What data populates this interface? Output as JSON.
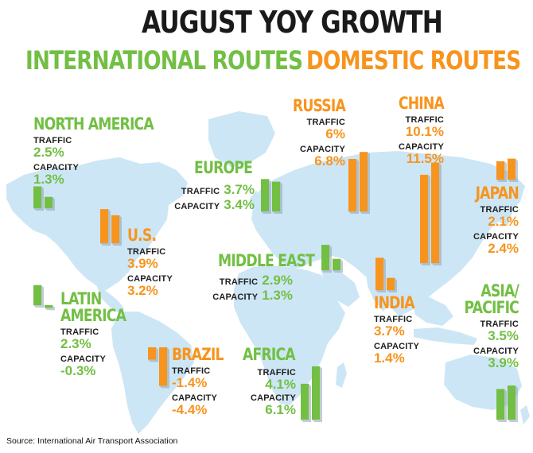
{
  "title": "AUGUST YOY GROWTH",
  "legend": {
    "international": "INTERNATIONAL ROUTES",
    "domestic": "DOMESTIC ROUTES"
  },
  "colors": {
    "international": "#72bf44",
    "domestic": "#f7941d",
    "map": "#cde6f5"
  },
  "source": "Source: International Air Transport Association",
  "chart_data": {
    "type": "bar",
    "title": "AUGUST YOY GROWTH",
    "metrics": [
      "TRAFFIC",
      "CAPACITY"
    ],
    "series": [
      {
        "name": "INTERNATIONAL ROUTES",
        "regions": [
          "NORTH AMERICA",
          "EUROPE",
          "MIDDLE EAST",
          "LATIN AMERICA",
          "AFRICA",
          "ASIA/ PACIFIC"
        ]
      },
      {
        "name": "DOMESTIC ROUTES",
        "regions": [
          "RUSSIA",
          "CHINA",
          "JAPAN",
          "U.S.",
          "INDIA",
          "BRAZIL"
        ]
      }
    ],
    "regions": [
      {
        "id": "north-america",
        "name": "NORTH AMERICA",
        "type": "international",
        "traffic": 2.5,
        "capacity": 1.3,
        "traffic_label": "2.5%",
        "capacity_label": "1.3%"
      },
      {
        "id": "europe",
        "name": "EUROPE",
        "type": "international",
        "traffic": 3.7,
        "capacity": 3.4,
        "traffic_label": "3.7%",
        "capacity_label": "3.4%"
      },
      {
        "id": "middle-east",
        "name": "MIDDLE EAST",
        "type": "international",
        "traffic": 2.9,
        "capacity": 1.3,
        "traffic_label": "2.9%",
        "capacity_label": "1.3%"
      },
      {
        "id": "latin-america",
        "name": "LATIN AMERICA",
        "type": "international",
        "traffic": 2.3,
        "capacity": -0.3,
        "traffic_label": "2.3%",
        "capacity_label": "-0.3%"
      },
      {
        "id": "africa",
        "name": "AFRICA",
        "type": "international",
        "traffic": 4.1,
        "capacity": 6.1,
        "traffic_label": "4.1%",
        "capacity_label": "6.1%"
      },
      {
        "id": "asia-pacific",
        "name": "ASIA/ PACIFIC",
        "type": "international",
        "traffic": 3.5,
        "capacity": 3.9,
        "traffic_label": "3.5%",
        "capacity_label": "3.9%"
      },
      {
        "id": "russia",
        "name": "RUSSIA",
        "type": "domestic",
        "traffic": 6,
        "capacity": 6.8,
        "traffic_label": "6%",
        "capacity_label": "6.8%"
      },
      {
        "id": "china",
        "name": "CHINA",
        "type": "domestic",
        "traffic": 10.1,
        "capacity": 11.5,
        "traffic_label": "10.1%",
        "capacity_label": "11.5%"
      },
      {
        "id": "japan",
        "name": "JAPAN",
        "type": "domestic",
        "traffic": 2.1,
        "capacity": 2.4,
        "traffic_label": "2.1%",
        "capacity_label": "2.4%"
      },
      {
        "id": "us",
        "name": "U.S.",
        "type": "domestic",
        "traffic": 3.9,
        "capacity": 3.2,
        "traffic_label": "3.9%",
        "capacity_label": "3.2%"
      },
      {
        "id": "india",
        "name": "INDIA",
        "type": "domestic",
        "traffic": 3.7,
        "capacity": 1.4,
        "traffic_label": "3.7%",
        "capacity_label": "1.4%"
      },
      {
        "id": "brazil",
        "name": "BRAZIL",
        "type": "domestic",
        "traffic": -1.4,
        "capacity": -4.4,
        "traffic_label": "-1.4%",
        "capacity_label": "-4.4%"
      }
    ]
  }
}
